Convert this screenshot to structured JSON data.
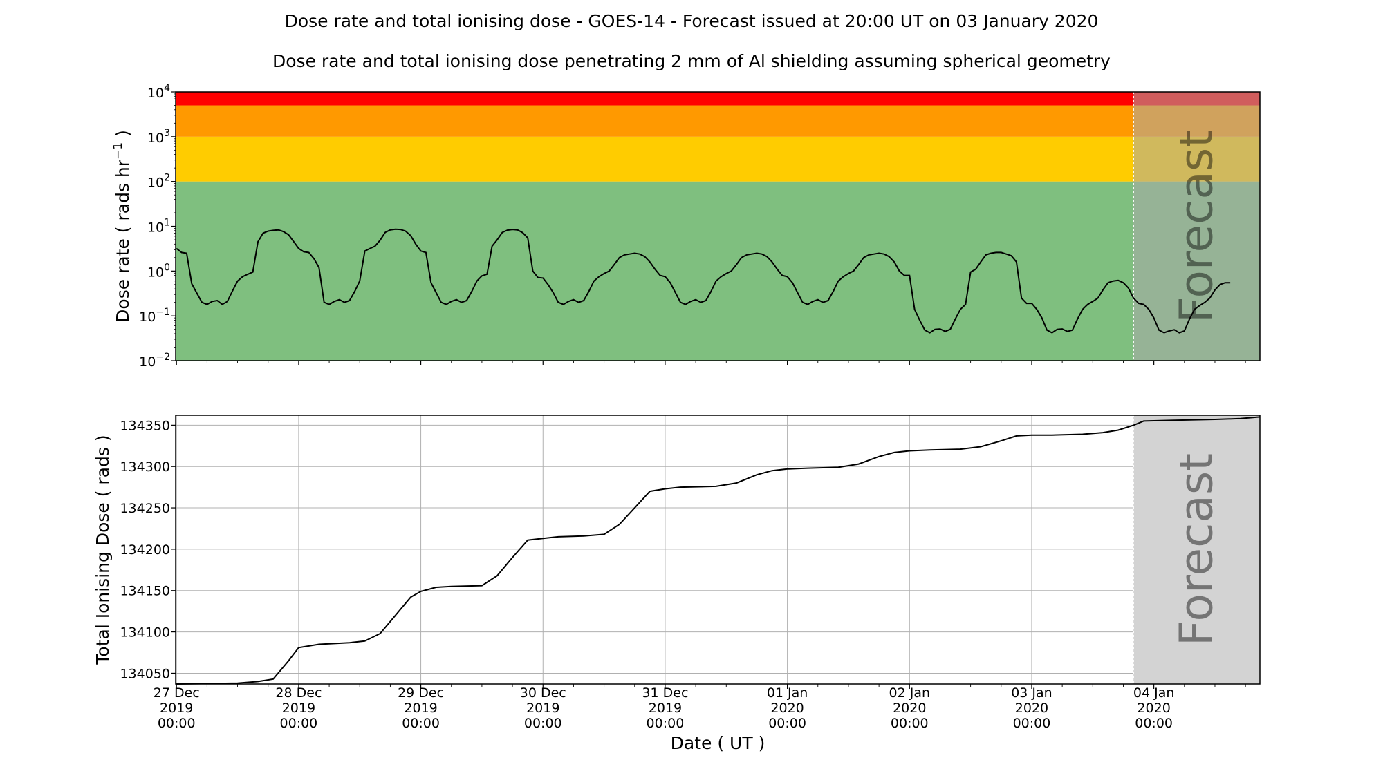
{
  "title": "Dose rate and total ionising dose - GOES-14 - Forecast issued at 20:00 UT on 03 January 2020",
  "subtitle": "Dose rate and total ionising dose penetrating 2 mm of Al shielding assuming spherical geometry",
  "forecast_label": "Forecast",
  "x_axis": {
    "label": "Date ( UT )",
    "ticks": [
      {
        "date": "2019-12-27 00:00",
        "lines": [
          "27 Dec",
          "2019",
          "00:00"
        ]
      },
      {
        "date": "2019-12-28 00:00",
        "lines": [
          "28 Dec",
          "2019",
          "00:00"
        ]
      },
      {
        "date": "2019-12-29 00:00",
        "lines": [
          "29 Dec",
          "2019",
          "00:00"
        ]
      },
      {
        "date": "2019-12-30 00:00",
        "lines": [
          "30 Dec",
          "2019",
          "00:00"
        ]
      },
      {
        "date": "2019-12-31 00:00",
        "lines": [
          "31 Dec",
          "2019",
          "00:00"
        ]
      },
      {
        "date": "2020-01-01 00:00",
        "lines": [
          "01 Jan",
          "2020",
          "00:00"
        ]
      },
      {
        "date": "2020-01-02 00:00",
        "lines": [
          "02 Jan",
          "2020",
          "00:00"
        ]
      },
      {
        "date": "2020-01-03 00:00",
        "lines": [
          "03 Jan",
          "2020",
          "00:00"
        ]
      },
      {
        "date": "2020-01-04 00:00",
        "lines": [
          "04 Jan",
          "2020",
          "00:00"
        ]
      }
    ],
    "range": [
      "2019-12-26 23:50",
      "2020-01-04 20:50"
    ],
    "forecast_start": "2020-01-03 20:00"
  },
  "chart_data": [
    {
      "type": "line",
      "ylabel_main": "Dose rate (  rads hr",
      "ylabel_exp": "−1",
      "ylabel_end": " )",
      "yscale": "log",
      "ylim": [
        0.01,
        10000
      ],
      "ytick_labels": [
        {
          "value": 0.01,
          "base": "10",
          "exp": "−2"
        },
        {
          "value": 0.1,
          "base": "10",
          "exp": "−1"
        },
        {
          "value": 1,
          "base": "10",
          "exp": "0"
        },
        {
          "value": 10,
          "base": "10",
          "exp": "1"
        },
        {
          "value": 100,
          "base": "10",
          "exp": "2"
        },
        {
          "value": 1000,
          "base": "10",
          "exp": "3"
        },
        {
          "value": 10000,
          "base": "10",
          "exp": "4"
        }
      ],
      "threshold_bands": [
        {
          "from": 0.01,
          "to": 100,
          "color": "#7fbf7f"
        },
        {
          "from": 100,
          "to": 1000,
          "color": "#ffcc00"
        },
        {
          "from": 1000,
          "to": 5000,
          "color": "#ff9900"
        },
        {
          "from": 5000,
          "to": 10000,
          "color": "#ff0000"
        }
      ],
      "forecast_shade_color": "#a9a9a9",
      "line_color": "#000000",
      "series": [
        {
          "x_start": "2019-12-27 00:00",
          "step_hours": 1,
          "values": [
            3.2,
            2.6,
            2.5,
            0.52,
            0.32,
            0.2,
            0.18,
            0.21,
            0.22,
            0.18,
            0.21,
            0.36,
            0.6,
            0.75,
            0.85,
            0.95,
            4.5,
            7.0,
            7.8,
            8.1,
            8.3,
            7.6,
            6.5,
            4.6,
            3.2,
            2.7,
            2.6,
            1.9,
            1.2,
            0.2,
            0.18,
            0.21,
            0.23,
            0.2,
            0.22,
            0.35,
            0.6,
            2.8,
            3.2,
            3.6,
            4.9,
            7.3,
            8.3,
            8.6,
            8.5,
            7.8,
            6.2,
            4.0,
            2.8,
            2.6,
            0.55,
            0.33,
            0.2,
            0.18,
            0.21,
            0.23,
            0.2,
            0.22,
            0.35,
            0.6,
            0.78,
            0.85,
            3.6,
            5.0,
            7.3,
            8.2,
            8.5,
            8.3,
            7.2,
            5.5,
            1.0,
            0.72,
            0.7,
            0.5,
            0.33,
            0.2,
            0.18,
            0.21,
            0.23,
            0.2,
            0.22,
            0.35,
            0.6,
            0.75,
            0.88,
            1.0,
            1.4,
            2.0,
            2.3,
            2.4,
            2.5,
            2.4,
            2.1,
            1.6,
            1.1,
            0.8,
            0.75,
            0.55,
            0.33,
            0.2,
            0.18,
            0.21,
            0.23,
            0.2,
            0.22,
            0.35,
            0.6,
            0.75,
            0.88,
            1.0,
            1.4,
            2.0,
            2.3,
            2.4,
            2.5,
            2.4,
            2.1,
            1.6,
            1.1,
            0.8,
            0.75,
            0.55,
            0.33,
            0.2,
            0.18,
            0.21,
            0.23,
            0.2,
            0.22,
            0.35,
            0.6,
            0.75,
            0.88,
            1.0,
            1.4,
            2.0,
            2.3,
            2.4,
            2.5,
            2.4,
            2.1,
            1.6,
            1.0,
            0.8,
            0.8,
            0.14,
            0.08,
            0.048,
            0.042,
            0.05,
            0.051,
            0.045,
            0.05,
            0.085,
            0.14,
            0.18,
            0.95,
            1.1,
            1.6,
            2.3,
            2.5,
            2.6,
            2.6,
            2.4,
            2.2,
            1.6,
            0.25,
            0.19,
            0.19,
            0.14,
            0.09,
            0.048,
            0.042,
            0.05,
            0.051,
            0.045,
            0.048,
            0.085,
            0.14,
            0.18,
            0.21,
            0.25,
            0.38,
            0.55,
            0.6,
            0.62,
            0.55,
            0.42,
            0.25,
            0.19,
            0.18,
            0.14,
            0.09,
            0.048,
            0.042,
            0.046,
            0.049,
            0.042,
            0.046,
            0.085,
            0.14,
            0.17,
            0.2,
            0.25,
            0.38,
            0.5,
            0.55,
            0.55
          ]
        }
      ]
    },
    {
      "type": "line",
      "ylabel": "Total Ionising Dose ( rads )",
      "ylim": [
        134037,
        134362
      ],
      "yticks": [
        134050,
        134100,
        134150,
        134200,
        134250,
        134300,
        134350
      ],
      "grid": true,
      "forecast_shade_color": "#d3d3d3",
      "line_color": "#000000",
      "series": [
        {
          "x": [
            "2019-12-27 00:00",
            "2019-12-27 12:00",
            "2019-12-27 16:00",
            "2019-12-27 19:00",
            "2019-12-27 22:00",
            "2019-12-28 00:00",
            "2019-12-28 04:00",
            "2019-12-28 10:00",
            "2019-12-28 13:00",
            "2019-12-28 16:00",
            "2019-12-28 19:00",
            "2019-12-28 22:00",
            "2019-12-29 00:00",
            "2019-12-29 03:00",
            "2019-12-29 06:00",
            "2019-12-29 12:00",
            "2019-12-29 15:00",
            "2019-12-29 18:00",
            "2019-12-29 21:00",
            "2019-12-30 00:00",
            "2019-12-30 03:00",
            "2019-12-30 08:00",
            "2019-12-30 12:00",
            "2019-12-30 15:00",
            "2019-12-30 18:00",
            "2019-12-30 21:00",
            "2019-12-31 00:00",
            "2019-12-31 03:00",
            "2019-12-31 10:00",
            "2019-12-31 14:00",
            "2019-12-31 18:00",
            "2019-12-31 21:00",
            "2020-01-01 00:00",
            "2020-01-01 04:00",
            "2020-01-01 10:00",
            "2020-01-01 14:00",
            "2020-01-01 18:00",
            "2020-01-01 21:00",
            "2020-01-02 00:00",
            "2020-01-02 04:00",
            "2020-01-02 10:00",
            "2020-01-02 14:00",
            "2020-01-02 18:00",
            "2020-01-02 21:00",
            "2020-01-03 00:00",
            "2020-01-03 04:00",
            "2020-01-03 10:00",
            "2020-01-03 14:00",
            "2020-01-03 17:00",
            "2020-01-03 20:00",
            "2020-01-03 22:00",
            "2020-01-04 04:00",
            "2020-01-04 12:00",
            "2020-01-04 17:00",
            "2020-01-04 20:50"
          ],
          "values": [
            134037,
            134038,
            134040,
            134043,
            134065,
            134081,
            134085,
            134087,
            134089,
            134098,
            134120,
            134142,
            134149,
            134154,
            134155,
            134156,
            134168,
            134190,
            134211,
            134213,
            134215,
            134216,
            134218,
            134230,
            134250,
            134270,
            134273,
            134275,
            134276,
            134280,
            134290,
            134295,
            134297,
            134298,
            134299,
            134303,
            134312,
            134317,
            134319,
            134320,
            134321,
            134324,
            134331,
            134337,
            134338,
            134338,
            134339,
            134341,
            134344,
            134350,
            134355,
            134356,
            134357,
            134358,
            134360
          ]
        }
      ]
    }
  ]
}
